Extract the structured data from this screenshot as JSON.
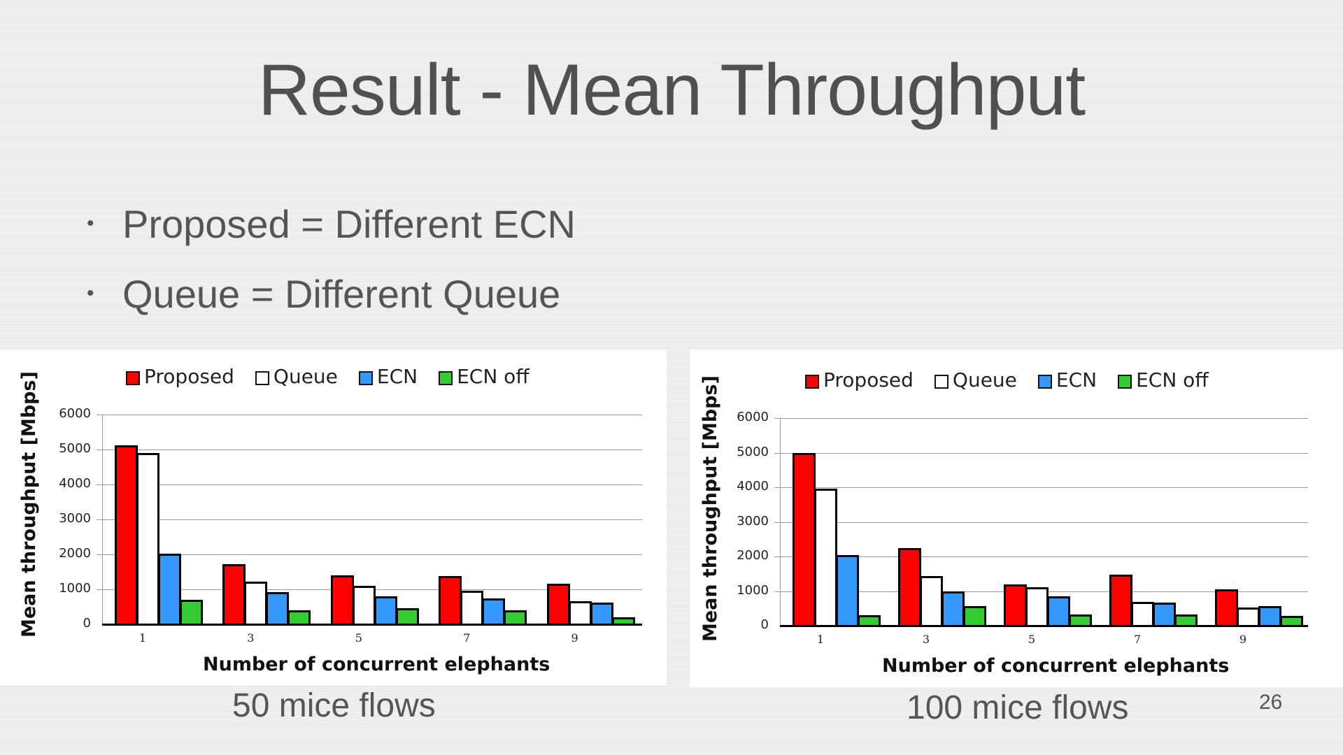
{
  "slide": {
    "title": "Result - Mean Throughput",
    "bullets": [
      {
        "symbol": "•",
        "text": "Proposed = Different ECN"
      },
      {
        "symbol": "•",
        "text": "Queue = Different Queue"
      }
    ],
    "captions": [
      "50 mice flows",
      "100 mice flows"
    ],
    "page_number": "26"
  },
  "colors": {
    "Proposed": "#ff0000",
    "Queue": "#ffffff",
    "ECN": "#3399ff",
    "ECN off": "#33cc33"
  },
  "chart_data": [
    {
      "type": "bar",
      "title": "",
      "caption": "50 mice flows",
      "xlabel": "Number of concurrent elephants",
      "ylabel": "Mean throughput [Mbps]",
      "categories": [
        "1",
        "3",
        "5",
        "7",
        "9"
      ],
      "yticks": [
        "0",
        "1000",
        "2000",
        "3000",
        "4000",
        "5000",
        "6000"
      ],
      "ylim": [
        0,
        6000
      ],
      "grid": true,
      "legend_position": "top",
      "series": [
        {
          "name": "Proposed",
          "values": [
            5130,
            1720,
            1410,
            1390,
            1170
          ]
        },
        {
          "name": "Queue",
          "values": [
            4900,
            1220,
            1110,
            970,
            670
          ]
        },
        {
          "name": "ECN",
          "values": [
            2030,
            920,
            800,
            750,
            630
          ]
        },
        {
          "name": "ECN off",
          "values": [
            700,
            410,
            470,
            400,
            200
          ]
        }
      ]
    },
    {
      "type": "bar",
      "title": "",
      "caption": "100 mice flows",
      "xlabel": "Number of concurrent elephants",
      "ylabel": "Mean throughput [Mbps]",
      "categories": [
        "1",
        "3",
        "5",
        "7",
        "9"
      ],
      "yticks": [
        "0",
        "1000",
        "2000",
        "3000",
        "4000",
        "5000",
        "6000"
      ],
      "ylim": [
        0,
        6000
      ],
      "grid": true,
      "legend_position": "top",
      "series": [
        {
          "name": "Proposed",
          "values": [
            5000,
            2250,
            1190,
            1470,
            1060
          ]
        },
        {
          "name": "Queue",
          "values": [
            3950,
            1440,
            1110,
            680,
            530
          ]
        },
        {
          "name": "ECN",
          "values": [
            2050,
            990,
            850,
            660,
            570
          ]
        },
        {
          "name": "ECN off",
          "values": [
            300,
            560,
            320,
            320,
            290
          ]
        }
      ]
    }
  ]
}
